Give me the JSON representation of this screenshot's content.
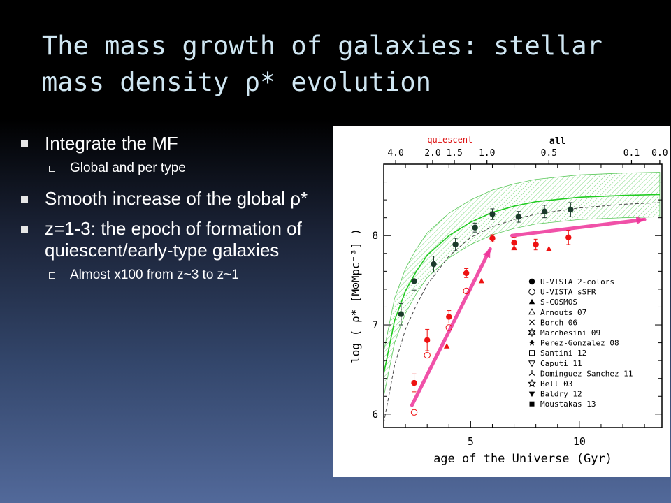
{
  "slide": {
    "title_line1": "The mass growth of galaxies: stellar",
    "title_line2": "mass density ρ* evolution",
    "bullets": [
      {
        "text": "Integrate the MF",
        "sub": [
          "Global and per type"
        ]
      },
      {
        "text": "Smooth increase of the global ρ*",
        "sub": []
      },
      {
        "text": "z=1-3: the epoch of formation of quiescent/early-type galaxies",
        "sub": [
          "Almost x100 from z~3 to z~1"
        ]
      }
    ]
  },
  "chart_data": {
    "type": "scatter",
    "xlabel": "age of the Universe (Gyr)",
    "ylabel": "log ( ρ* [M⊙Mpc⁻³] )",
    "xlim": [
      1.0,
      13.8
    ],
    "ylim": [
      5.85,
      8.8
    ],
    "x_ticks": [
      5,
      10
    ],
    "y_ticks": [
      6,
      7,
      8
    ],
    "top_axis": {
      "ticks": [
        {
          "label": "4.0",
          "age": 1.55
        },
        {
          "label": "2.0",
          "age": 3.25
        },
        {
          "label": "1.5",
          "age": 4.25
        },
        {
          "label": "1.0",
          "age": 5.75
        },
        {
          "label": "0.5",
          "age": 8.6
        },
        {
          "label": "0.1",
          "age": 12.4
        },
        {
          "label": "0.0",
          "age": 13.7
        }
      ]
    },
    "annotations": [
      {
        "text": "quiescent",
        "color": "#dd1111"
      },
      {
        "text": "all",
        "color": "#000000"
      }
    ],
    "legend_position": "bottom-right",
    "legend": [
      {
        "name": "U-VISTA 2-colors",
        "marker": "circle-filled"
      },
      {
        "name": "U-VISTA sSFR",
        "marker": "circle-open"
      },
      {
        "name": "S-COSMOS",
        "marker": "triangle-filled"
      },
      {
        "name": "Arnouts 07",
        "marker": "triangle-open"
      },
      {
        "name": "Borch 06",
        "marker": "cross"
      },
      {
        "name": "Marchesini 09",
        "marker": "star-burst"
      },
      {
        "name": "Perez-Gonzalez 08",
        "marker": "star-small"
      },
      {
        "name": "Santini 12",
        "marker": "square-open"
      },
      {
        "name": "Caputi 11",
        "marker": "triangle-down-open"
      },
      {
        "name": "Dominguez-Sanchez 11",
        "marker": "tri-branch"
      },
      {
        "name": "Bell 03",
        "marker": "star-open"
      },
      {
        "name": "Baldry 12",
        "marker": "triangle-down-filled"
      },
      {
        "name": "Moustakas 13",
        "marker": "square-filled"
      }
    ],
    "colors": {
      "all": "#1a3a2a",
      "quiescent": "#ee1111",
      "model": "#22cc22",
      "arrow": "#ee3399"
    },
    "series": [
      {
        "name": "U-VISTA 2-colors",
        "group": "all",
        "marker": "circle-filled",
        "x": [
          1.8,
          2.4,
          3.3,
          4.3,
          5.2,
          6.0,
          7.2,
          8.4,
          9.6
        ],
        "y": [
          7.12,
          7.49,
          7.68,
          7.9,
          8.09,
          8.24,
          8.21,
          8.27,
          8.29
        ],
        "err": [
          0.12,
          0.1,
          0.09,
          0.07,
          0.05,
          0.06,
          0.06,
          0.07,
          0.08
        ]
      },
      {
        "name": "U-VISTA 2-colors",
        "group": "quiescent",
        "marker": "circle-filled",
        "x": [
          2.4,
          3.0,
          4.0,
          4.8,
          6.0,
          7.0,
          8.0,
          9.5
        ],
        "y": [
          6.35,
          6.83,
          7.09,
          7.58,
          7.97,
          7.92,
          7.9,
          7.98
        ],
        "err": [
          0.1,
          0.12,
          0.07,
          0.05,
          0.04,
          0.06,
          0.06,
          0.08
        ]
      },
      {
        "name": "U-VISTA sSFR",
        "group": "quiescent",
        "marker": "circle-open",
        "x": [
          2.4,
          3.0,
          4.0,
          4.8
        ],
        "y": [
          6.02,
          6.66,
          6.97,
          7.38
        ]
      },
      {
        "name": "S-COSMOS",
        "group": "quiescent",
        "marker": "triangle-filled",
        "x": [
          3.9,
          5.5,
          7.0,
          8.6
        ],
        "y": [
          6.76,
          7.49,
          7.86,
          7.85
        ]
      },
      {
        "name": "model",
        "group": "all",
        "style": "line",
        "x": [
          1.0,
          1.5,
          2.0,
          2.5,
          3.0,
          4.0,
          5.0,
          6.0,
          7.0,
          8.0,
          10.0,
          12.0,
          13.7
        ],
        "y": [
          6.45,
          7.05,
          7.38,
          7.6,
          7.78,
          8.0,
          8.15,
          8.26,
          8.33,
          8.38,
          8.43,
          8.45,
          8.46
        ]
      },
      {
        "name": "fit",
        "group": "all",
        "style": "dashed",
        "x": [
          1.0,
          1.5,
          2.0,
          2.5,
          3.0,
          4.0,
          5.0,
          6.0,
          7.0,
          8.0,
          10.0,
          12.0,
          13.7
        ],
        "y": [
          5.9,
          6.55,
          6.95,
          7.22,
          7.45,
          7.77,
          7.98,
          8.1,
          8.18,
          8.24,
          8.31,
          8.35,
          8.37
        ]
      },
      {
        "name": "arrows",
        "group": "quiescent",
        "style": "arrow",
        "x": [
          2.3,
          5.9,
          6.9,
          13.0
        ],
        "y": [
          6.1,
          7.85,
          8.0,
          8.18
        ]
      }
    ]
  }
}
